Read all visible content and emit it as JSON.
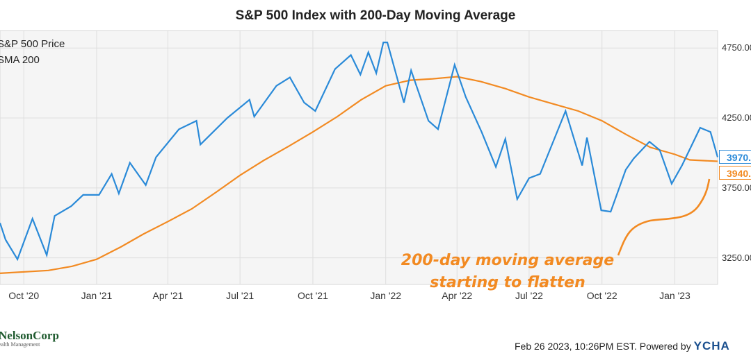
{
  "chart_data": {
    "type": "line",
    "title": "S&P 500 Index with 200-Day Moving Average",
    "x_ticks": [
      "Oct '20",
      "Jan '21",
      "Apr '21",
      "Jul '21",
      "Oct '21",
      "Jan '22",
      "Apr '22",
      "Jul '22",
      "Oct '22",
      "Jan '23"
    ],
    "x_range": [
      "2020-09-01",
      "2023-02-24"
    ],
    "y_ticks": [
      "3250.00",
      "3750.00",
      "4250.00",
      "4750.00"
    ],
    "ylim": [
      3060,
      4875
    ],
    "grid": true,
    "legend_placement": "top-left",
    "series": [
      {
        "name": "S&P 500 Price",
        "color": "#2a8ad8",
        "end_label": "3970.",
        "points": [
          [
            "2020-09-01",
            3500
          ],
          [
            "2020-09-08",
            3380
          ],
          [
            "2020-09-23",
            3240
          ],
          [
            "2020-10-12",
            3530
          ],
          [
            "2020-10-30",
            3270
          ],
          [
            "2020-11-09",
            3550
          ],
          [
            "2020-11-30",
            3620
          ],
          [
            "2020-12-15",
            3700
          ],
          [
            "2021-01-04",
            3700
          ],
          [
            "2021-01-20",
            3850
          ],
          [
            "2021-01-29",
            3710
          ],
          [
            "2021-02-12",
            3930
          ],
          [
            "2021-03-04",
            3770
          ],
          [
            "2021-03-17",
            3970
          ],
          [
            "2021-04-15",
            4170
          ],
          [
            "2021-05-07",
            4230
          ],
          [
            "2021-05-12",
            4060
          ],
          [
            "2021-06-15",
            4250
          ],
          [
            "2021-07-13",
            4380
          ],
          [
            "2021-07-19",
            4260
          ],
          [
            "2021-08-16",
            4480
          ],
          [
            "2021-09-02",
            4540
          ],
          [
            "2021-09-20",
            4360
          ],
          [
            "2021-10-04",
            4300
          ],
          [
            "2021-10-29",
            4600
          ],
          [
            "2021-11-18",
            4700
          ],
          [
            "2021-11-30",
            4560
          ],
          [
            "2021-12-10",
            4720
          ],
          [
            "2021-12-20",
            4570
          ],
          [
            "2021-12-29",
            4790
          ],
          [
            "2022-01-03",
            4790
          ],
          [
            "2022-01-24",
            4360
          ],
          [
            "2022-02-02",
            4590
          ],
          [
            "2022-02-24",
            4230
          ],
          [
            "2022-03-08",
            4170
          ],
          [
            "2022-03-29",
            4630
          ],
          [
            "2022-04-12",
            4400
          ],
          [
            "2022-05-02",
            4150
          ],
          [
            "2022-05-20",
            3900
          ],
          [
            "2022-06-01",
            4100
          ],
          [
            "2022-06-16",
            3670
          ],
          [
            "2022-07-01",
            3820
          ],
          [
            "2022-07-15",
            3850
          ],
          [
            "2022-08-16",
            4300
          ],
          [
            "2022-09-06",
            3910
          ],
          [
            "2022-09-12",
            4110
          ],
          [
            "2022-09-30",
            3590
          ],
          [
            "2022-10-12",
            3580
          ],
          [
            "2022-10-31",
            3880
          ],
          [
            "2022-11-10",
            3960
          ],
          [
            "2022-11-30",
            4080
          ],
          [
            "2022-12-13",
            4020
          ],
          [
            "2022-12-28",
            3780
          ],
          [
            "2023-01-10",
            3910
          ],
          [
            "2023-02-02",
            4180
          ],
          [
            "2023-02-15",
            4150
          ],
          [
            "2023-02-24",
            3970
          ]
        ]
      },
      {
        "name": "SMA 200",
        "color": "#f28a22",
        "end_label": "3940.",
        "points": [
          [
            "2020-09-01",
            3140
          ],
          [
            "2020-11-01",
            3160
          ],
          [
            "2020-12-01",
            3190
          ],
          [
            "2021-01-01",
            3240
          ],
          [
            "2021-02-01",
            3330
          ],
          [
            "2021-03-01",
            3420
          ],
          [
            "2021-04-01",
            3510
          ],
          [
            "2021-05-01",
            3600
          ],
          [
            "2021-06-01",
            3720
          ],
          [
            "2021-07-01",
            3840
          ],
          [
            "2021-08-01",
            3950
          ],
          [
            "2021-09-01",
            4050
          ],
          [
            "2021-10-01",
            4150
          ],
          [
            "2021-11-01",
            4260
          ],
          [
            "2021-12-01",
            4380
          ],
          [
            "2022-01-01",
            4480
          ],
          [
            "2022-02-01",
            4520
          ],
          [
            "2022-03-01",
            4530
          ],
          [
            "2022-04-01",
            4545
          ],
          [
            "2022-05-01",
            4510
          ],
          [
            "2022-06-01",
            4460
          ],
          [
            "2022-07-01",
            4400
          ],
          [
            "2022-08-01",
            4350
          ],
          [
            "2022-09-01",
            4300
          ],
          [
            "2022-10-01",
            4230
          ],
          [
            "2022-11-01",
            4130
          ],
          [
            "2022-12-01",
            4040
          ],
          [
            "2023-01-01",
            3990
          ],
          [
            "2023-01-20",
            3950
          ],
          [
            "2023-02-24",
            3940
          ]
        ]
      }
    ],
    "annotation": [
      "200-day moving average",
      "starting to flatten"
    ]
  },
  "footer": {
    "timestamp": "Feb 26 2023, 10:26PM EST.",
    "powered_by": "Powered by",
    "brand": "YCHA"
  },
  "logo": {
    "name": "NelsonCorp",
    "sub": "ealth Management"
  }
}
